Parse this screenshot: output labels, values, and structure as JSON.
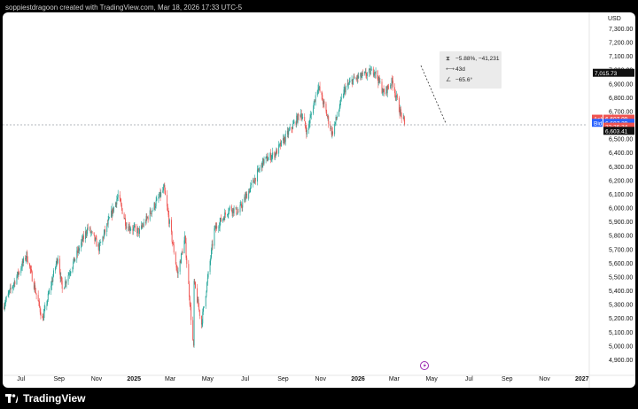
{
  "header": {
    "text": "soppiestdragoon created with TradingView.com, Mar 18, 2026 17:33 UTC-5"
  },
  "footer": {
    "brand": "TradingView"
  },
  "currency": "USD",
  "colors": {
    "up": "#26a69a",
    "down": "#ef5350",
    "ask": "#ef5350",
    "bid": "#2962ff",
    "background": "#ffffff",
    "frame": "#000000"
  },
  "price_labels": {
    "pattern_high": "7,015.73",
    "ask_label": "Ask",
    "ask_value": "6,607.99",
    "bid_label": "Bid",
    "bid_value": "6,607.39",
    "countdown": "22:26:34",
    "last": "6,603.41"
  },
  "measure": {
    "change": "−5.88%, −41,231",
    "bars": "43d",
    "angle": "−65.6°"
  },
  "chart_data": {
    "type": "candlestick",
    "y_range": [
      4800,
      7380
    ],
    "y_ticks": [
      {
        "v": 7300,
        "label": "7,300.00"
      },
      {
        "v": 7200,
        "label": "7,200.00"
      },
      {
        "v": 7100,
        "label": "7,100.00"
      },
      {
        "v": 7000,
        "label": "7,000.00"
      },
      {
        "v": 6900,
        "label": "6,900.00"
      },
      {
        "v": 6800,
        "label": "6,800.00"
      },
      {
        "v": 6700,
        "label": "6,700.00"
      },
      {
        "v": 6500,
        "label": "6,500.00"
      },
      {
        "v": 6400,
        "label": "6,400.00"
      },
      {
        "v": 6300,
        "label": "6,300.00"
      },
      {
        "v": 6200,
        "label": "6,200.00"
      },
      {
        "v": 6100,
        "label": "6,100.00"
      },
      {
        "v": 6000,
        "label": "6,000.00"
      },
      {
        "v": 5900,
        "label": "5,900.00"
      },
      {
        "v": 5800,
        "label": "5,800.00"
      },
      {
        "v": 5700,
        "label": "5,700.00"
      },
      {
        "v": 5600,
        "label": "5,600.00"
      },
      {
        "v": 5500,
        "label": "5,500.00"
      },
      {
        "v": 5400,
        "label": "5,400.00"
      },
      {
        "v": 5300,
        "label": "5,300.00"
      },
      {
        "v": 5200,
        "label": "5,200.00"
      },
      {
        "v": 5100,
        "label": "5,100.00"
      },
      {
        "v": 5000,
        "label": "5,000.00"
      },
      {
        "v": 4900,
        "label": "4,900.00"
      }
    ],
    "x_ticks": [
      {
        "label": "Jul",
        "bold": false
      },
      {
        "label": "Sep",
        "bold": false
      },
      {
        "label": "Nov",
        "bold": false
      },
      {
        "label": "2025",
        "bold": true
      },
      {
        "label": "Mar",
        "bold": false
      },
      {
        "label": "May",
        "bold": false
      },
      {
        "label": "Jul",
        "bold": false
      },
      {
        "label": "Sep",
        "bold": false
      },
      {
        "label": "Nov",
        "bold": false
      },
      {
        "label": "2026",
        "bold": true
      },
      {
        "label": "Mar",
        "bold": false
      },
      {
        "label": "May",
        "bold": false
      },
      {
        "label": "Jul",
        "bold": false
      },
      {
        "label": "Sep",
        "bold": false
      },
      {
        "label": "Nov",
        "bold": false
      },
      {
        "label": "2027",
        "bold": true
      }
    ],
    "x_range": [
      "2024-06-01",
      "2027-01-10"
    ],
    "x_tick_dates": [
      "2024-07-01",
      "2024-09-01",
      "2024-11-01",
      "2025-01-01",
      "2025-03-01",
      "2025-05-01",
      "2025-07-01",
      "2025-09-01",
      "2025-11-01",
      "2026-01-01",
      "2026-03-01",
      "2026-05-01",
      "2026-07-01",
      "2026-09-01",
      "2026-11-01",
      "2027-01-01"
    ],
    "last_date": "2026-03-18",
    "last_price": 6603.41,
    "pattern_high": 7015.73,
    "price_path": [
      {
        "d": "2024-06-01",
        "p": 5280
      },
      {
        "d": "2024-07-10",
        "p": 5660
      },
      {
        "d": "2024-08-05",
        "p": 5190
      },
      {
        "d": "2024-08-30",
        "p": 5650
      },
      {
        "d": "2024-09-06",
        "p": 5410
      },
      {
        "d": "2024-10-18",
        "p": 5860
      },
      {
        "d": "2024-11-05",
        "p": 5710
      },
      {
        "d": "2024-12-06",
        "p": 6090
      },
      {
        "d": "2024-12-20",
        "p": 5870
      },
      {
        "d": "2025-01-10",
        "p": 5830
      },
      {
        "d": "2025-02-19",
        "p": 6140
      },
      {
        "d": "2025-03-13",
        "p": 5520
      },
      {
        "d": "2025-03-25",
        "p": 5780
      },
      {
        "d": "2025-04-08",
        "p": 4980
      },
      {
        "d": "2025-04-09",
        "p": 5460
      },
      {
        "d": "2025-04-21",
        "p": 5160
      },
      {
        "d": "2025-05-12",
        "p": 5840
      },
      {
        "d": "2025-06-06",
        "p": 6000
      },
      {
        "d": "2025-06-20",
        "p": 5970
      },
      {
        "d": "2025-07-31",
        "p": 6340
      },
      {
        "d": "2025-08-20",
        "p": 6400
      },
      {
        "d": "2025-09-30",
        "p": 6690
      },
      {
        "d": "2025-10-10",
        "p": 6550
      },
      {
        "d": "2025-10-28",
        "p": 6890
      },
      {
        "d": "2025-11-20",
        "p": 6540
      },
      {
        "d": "2025-12-10",
        "p": 6860
      },
      {
        "d": "2025-12-24",
        "p": 6930
      },
      {
        "d": "2026-01-15",
        "p": 6970
      },
      {
        "d": "2026-01-28",
        "p": 7000
      },
      {
        "d": "2026-02-12",
        "p": 6830
      },
      {
        "d": "2026-02-26",
        "p": 6920
      },
      {
        "d": "2026-03-09",
        "p": 6720
      },
      {
        "d": "2026-03-18",
        "p": 6603
      }
    ]
  }
}
